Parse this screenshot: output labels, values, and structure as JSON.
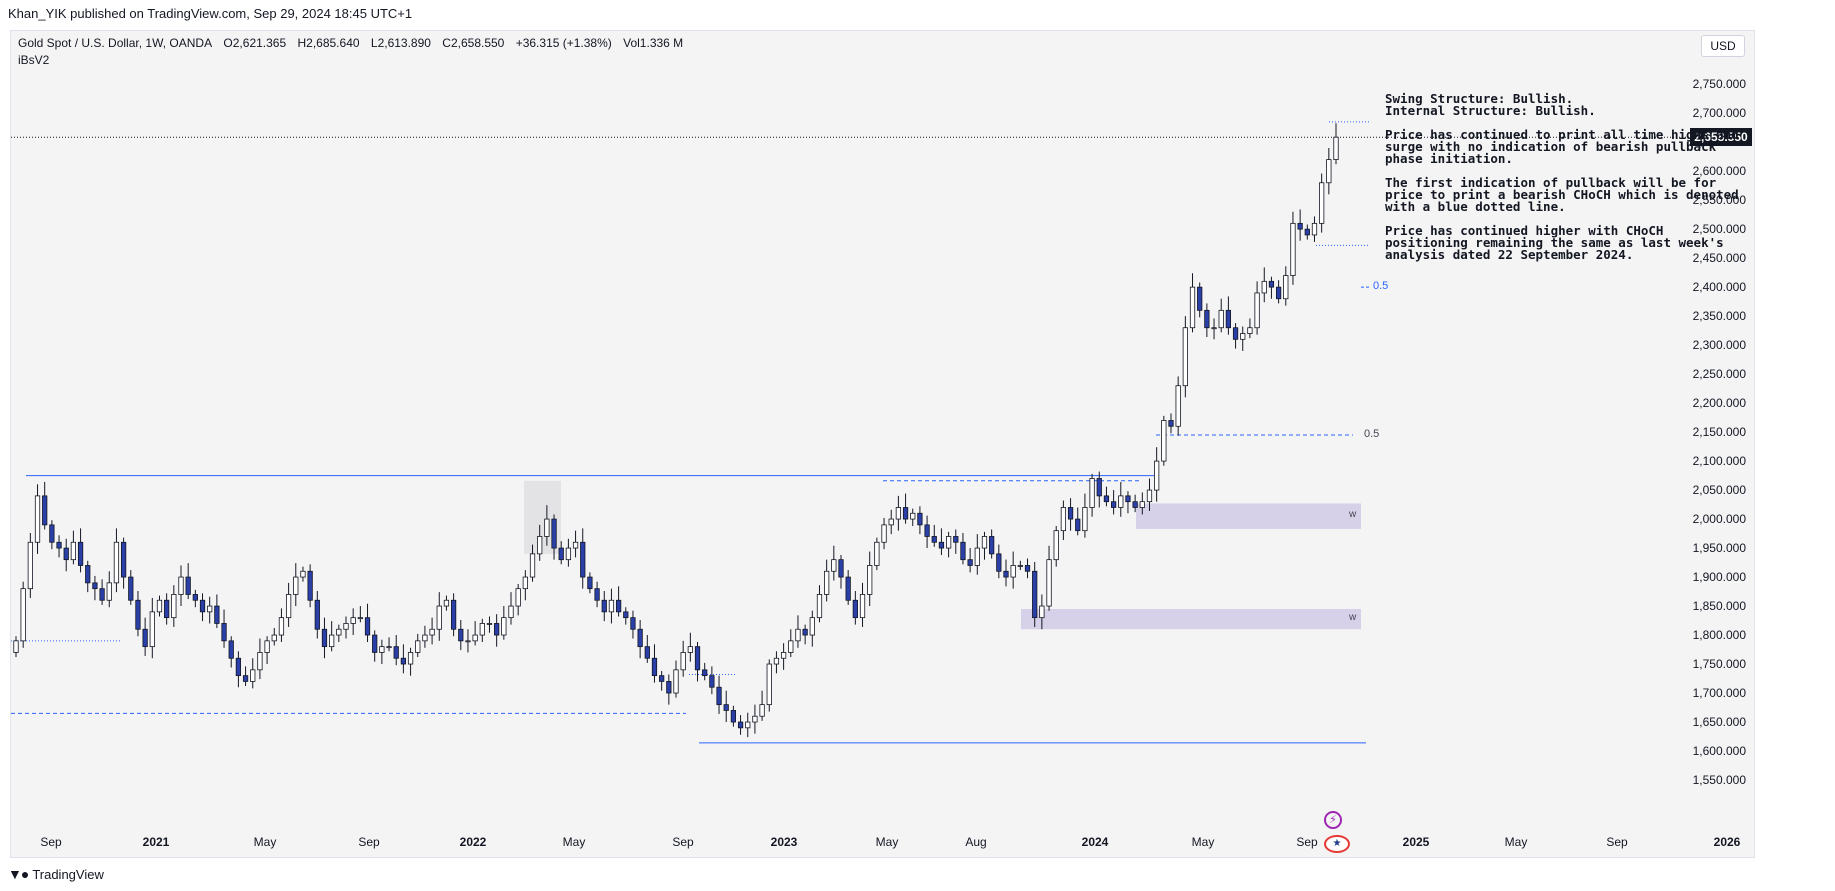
{
  "header": {
    "publisher_line": "Khan_YIK published on TradingView.com, Sep 29, 2024 18:45 UTC+1"
  },
  "legend": {
    "symbol": "Gold Spot / U.S. Dollar, 1W, OANDA",
    "open": "O2,621.365",
    "high": "H2,685.640",
    "low": "L2,613.890",
    "close": "C2,658.550",
    "change": "+36.315 (+1.38%)",
    "volume": "Vol1.336 M",
    "indicator": "iBsV2"
  },
  "currency_button": "USD",
  "last_price_tag": "2,658.550",
  "analysis": {
    "swing": "Swing Structure: Bullish.",
    "internal": "Internal Structure: Bullish.",
    "p1": "Price has continued to print all time highs and surge with no indication of bearish pullback phase initiation.",
    "p2": "The first indication of pullback will be for price to print a bearish CHoCH which is denoted with a blue dotted line.",
    "p3": "Price has continued higher with CHoCH positioning remaining the same as last week's analysis dated 22 September 2024."
  },
  "annotations": {
    "fib_upper": "0.5",
    "fib_lower": "0.5",
    "zone_upper": "w",
    "zone_lower": "w"
  },
  "footer": {
    "brand": "TradingView"
  },
  "icons": {
    "logo": "tradingview-logo-icon",
    "bolt": "lightning-icon",
    "flag": "us-flag-icon"
  },
  "colors": {
    "bull_body": "#ffffff",
    "bear_body": "#2a3fa8",
    "candle_outline": "#131722",
    "structure_line": "#2962ff",
    "zone_fill": "#d6d1e8",
    "pane_bg": "#f5f4f5"
  },
  "chart_data": {
    "type": "candlestick",
    "symbol": "Gold Spot / U.S. Dollar",
    "timeframe": "1W",
    "ylim": [
      1500,
      2790
    ],
    "y_ticks": [
      1550,
      1600,
      1650,
      1700,
      1750,
      1800,
      1850,
      1900,
      1950,
      2000,
      2050,
      2100,
      2150,
      2200,
      2250,
      2300,
      2350,
      2400,
      2450,
      2500,
      2550,
      2600,
      2650,
      2700,
      2750
    ],
    "y_tick_labels": [
      "1,550.000",
      "1,600.000",
      "1,650.000",
      "1,700.000",
      "1,750.000",
      "1,800.000",
      "1,850.000",
      "1,900.000",
      "1,950.000",
      "2,000.000",
      "2,050.000",
      "2,100.000",
      "2,150.000",
      "2,200.000",
      "2,250.000",
      "2,300.000",
      "2,350.000",
      "2,400.000",
      "2,450.000",
      "2,500.000",
      "2,550.000",
      "2,600.000",
      "2,650.000",
      "2,700.000",
      "2,750.000"
    ],
    "x_ticks": [
      {
        "label": "Sep",
        "bold": false
      },
      {
        "label": "2021",
        "bold": true
      },
      {
        "label": "May",
        "bold": false
      },
      {
        "label": "Sep",
        "bold": false
      },
      {
        "label": "2022",
        "bold": true
      },
      {
        "label": "May",
        "bold": false
      },
      {
        "label": "Sep",
        "bold": false
      },
      {
        "label": "2023",
        "bold": true
      },
      {
        "label": "May",
        "bold": false
      },
      {
        "label": "Aug",
        "bold": false
      },
      {
        "label": "2024",
        "bold": true
      },
      {
        "label": "May",
        "bold": false
      },
      {
        "label": "Sep",
        "bold": false
      },
      {
        "label": "2025",
        "bold": true
      },
      {
        "label": "May",
        "bold": false
      },
      {
        "label": "Sep",
        "bold": false
      },
      {
        "label": "2026",
        "bold": true
      }
    ],
    "last_price": 2658.55,
    "levels": {
      "range_high": 2075,
      "range_low": 1614,
      "choch": 2472,
      "fib_upper": 2400,
      "fib_lower": 2145,
      "left_dotted": 1790,
      "mid_dashed": 1665,
      "sep22_dotted": 1732,
      "inner_dashed": 2066,
      "ath_dotted": 2685
    },
    "zones": [
      {
        "name": "upper",
        "top": 2027,
        "bottom": 1983
      },
      {
        "name": "lower",
        "top": 1845,
        "bottom": 1810
      }
    ],
    "ohlc_closes": [
      1790,
      1880,
      1960,
      2040,
      1990,
      1960,
      1950,
      1930,
      1960,
      1920,
      1890,
      1880,
      1860,
      1890,
      1960,
      1900,
      1860,
      1810,
      1780,
      1840,
      1860,
      1830,
      1870,
      1900,
      1870,
      1860,
      1840,
      1850,
      1820,
      1790,
      1760,
      1730,
      1720,
      1740,
      1770,
      1790,
      1800,
      1830,
      1870,
      1900,
      1910,
      1860,
      1810,
      1780,
      1800,
      1810,
      1820,
      1830,
      1830,
      1800,
      1770,
      1780,
      1780,
      1760,
      1750,
      1770,
      1790,
      1800,
      1810,
      1850,
      1860,
      1810,
      1790,
      1790,
      1800,
      1820,
      1820,
      1800,
      1830,
      1850,
      1880,
      1900,
      1940,
      1970,
      2000,
      1950,
      1930,
      1950,
      1960,
      1900,
      1880,
      1860,
      1840,
      1860,
      1840,
      1830,
      1810,
      1780,
      1760,
      1730,
      1720,
      1700,
      1740,
      1770,
      1780,
      1740,
      1730,
      1710,
      1680,
      1670,
      1650,
      1640,
      1650,
      1660,
      1680,
      1750,
      1760,
      1770,
      1790,
      1810,
      1800,
      1830,
      1870,
      1910,
      1930,
      1900,
      1860,
      1830,
      1870,
      1920,
      1960,
      1990,
      2000,
      2020,
      2000,
      2010,
      1990,
      1970,
      1960,
      1950,
      1970,
      1960,
      1930,
      1920,
      1950,
      1970,
      1940,
      1910,
      1900,
      1920,
      1920,
      1910,
      1830,
      1850,
      1930,
      1980,
      2020,
      2000,
      1980,
      2020,
      2070,
      2040,
      2030,
      2020,
      2040,
      2030,
      2020,
      2030,
      2050,
      2100,
      2170,
      2160,
      2230,
      2330,
      2400,
      2360,
      2330,
      2330,
      2360,
      2330,
      2310,
      2320,
      2330,
      2390,
      2410,
      2400,
      2380,
      2420,
      2510,
      2500,
      2490,
      2510,
      2580,
      2620,
      2658.55
    ],
    "description": "Weekly candles from approx. Aug 2020 to Sep 2024"
  }
}
